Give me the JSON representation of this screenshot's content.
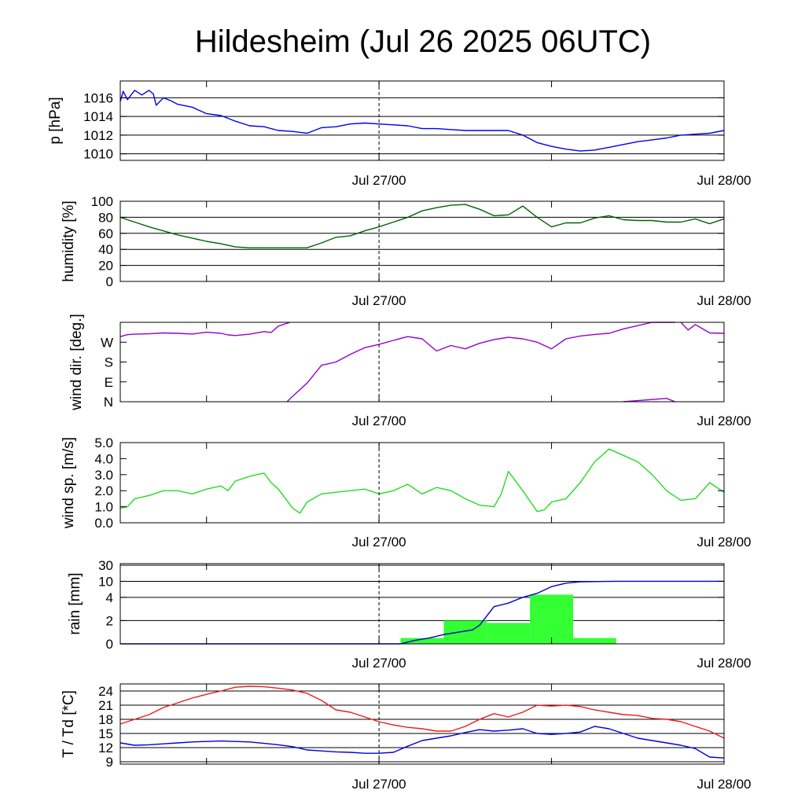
{
  "title": "Hildesheim (Jul 26 2025 06UTC)",
  "colors": {
    "pressure": "#0000ee",
    "humidity": "#006400",
    "wind_dir": "#9400d3",
    "wind_speed": "#22dd22",
    "rain_bar": "#33ff33",
    "rain_cum": "#0000cc",
    "temperature": "#ee1c1c",
    "dewpoint": "#0000dd"
  },
  "x_axis": {
    "unit": "hours since Jul 26 06UTC",
    "range": [
      0,
      42
    ],
    "tick_labels": [
      "Jul 27/00",
      "Jul 28/00"
    ]
  },
  "chart_data": [
    {
      "type": "line",
      "ylabel": "p [hPa]",
      "ylim": [
        1009.3,
        1017.8
      ],
      "yticks": [
        1010,
        1012,
        1014,
        1016
      ],
      "ytick_labels": [
        "1010",
        "1012",
        "1014",
        "1016"
      ],
      "grid": true,
      "series": [
        {
          "x": [
            0,
            0.2,
            0.5,
            1,
            1.5,
            2,
            2.3,
            2.5,
            3,
            3.5,
            4,
            5,
            6,
            7,
            8,
            9,
            10,
            11,
            12,
            13,
            14,
            15,
            16,
            17,
            18,
            19,
            20,
            21,
            22,
            23,
            24,
            25,
            26,
            27,
            28,
            29,
            30,
            31,
            32,
            33,
            34,
            35,
            36,
            37,
            38,
            39,
            40,
            41,
            42
          ],
          "y": [
            1015.6,
            1016.7,
            1015.8,
            1016.8,
            1016.3,
            1016.8,
            1016.4,
            1015.2,
            1016.0,
            1015.7,
            1015.3,
            1015.0,
            1014.3,
            1014.1,
            1013.5,
            1013.0,
            1012.9,
            1012.5,
            1012.4,
            1012.2,
            1012.8,
            1012.9,
            1013.2,
            1013.3,
            1013.2,
            1013.1,
            1013.0,
            1012.7,
            1012.7,
            1012.6,
            1012.5,
            1012.5,
            1012.5,
            1012.5,
            1012.0,
            1011.2,
            1010.8,
            1010.5,
            1010.3,
            1010.4,
            1010.7,
            1011.0,
            1011.3,
            1011.5,
            1011.7,
            1012.0,
            1012.1,
            1012.2,
            1012.5
          ]
        }
      ]
    },
    {
      "type": "line",
      "ylabel": "humidity [%]",
      "ylim": [
        0,
        100
      ],
      "yticks": [
        0,
        20,
        40,
        60,
        80,
        100
      ],
      "ytick_labels": [
        "0",
        "20",
        "40",
        "60",
        "80",
        "100"
      ],
      "grid": true,
      "series": [
        {
          "x": [
            0,
            1,
            2,
            3,
            4,
            5,
            6,
            7,
            8,
            9,
            10,
            11,
            12,
            13,
            14,
            15,
            16,
            17,
            18,
            19,
            20,
            21,
            22,
            23,
            24,
            25,
            26,
            27,
            28,
            29,
            30,
            31,
            32,
            33,
            34,
            35,
            36,
            37,
            38,
            39,
            40,
            41,
            42
          ],
          "y": [
            80,
            74,
            68,
            63,
            58,
            54,
            50,
            47,
            43,
            42,
            42,
            42,
            42,
            42,
            48,
            55,
            57,
            63,
            68,
            74,
            80,
            88,
            92,
            95,
            96,
            90,
            82,
            83,
            94,
            80,
            68,
            73,
            73,
            79,
            82,
            77,
            76,
            76,
            74,
            74,
            78,
            72,
            78
          ]
        }
      ]
    },
    {
      "type": "line",
      "ylabel": "wind dir. [deg.]",
      "ylim": [
        0,
        360
      ],
      "yticks": [
        0,
        90,
        180,
        270
      ],
      "ytick_labels": [
        "N",
        "E",
        "S",
        "W"
      ],
      "grid": false,
      "series": [
        {
          "x": [
            0,
            0.5,
            1,
            2,
            3,
            4,
            5,
            6,
            7,
            7.5,
            8,
            9,
            10,
            10.5,
            11,
            11.8
          ],
          "y": [
            295,
            304,
            306,
            308,
            312,
            310,
            307,
            315,
            310,
            303,
            300,
            306,
            318,
            314,
            343,
            360
          ]
        },
        {
          "x": [
            11.6,
            12,
            13,
            14,
            15,
            16,
            17,
            18,
            19,
            20,
            21,
            22,
            23,
            24,
            25,
            26,
            27,
            28,
            29,
            30,
            31,
            32,
            33,
            34,
            35
          ],
          "y": [
            0,
            25,
            85,
            165,
            180,
            215,
            245,
            260,
            278,
            295,
            285,
            230,
            255,
            240,
            265,
            282,
            292,
            285,
            270,
            240,
            285,
            298,
            305,
            310,
            330
          ]
        },
        {
          "x": [
            35,
            36,
            37,
            38,
            38.6
          ],
          "y": [
            330,
            345,
            360,
            360,
            360
          ]
        },
        {
          "x": [
            35,
            36,
            37,
            38,
            38.6
          ],
          "y": [
            0,
            5,
            10,
            15,
            0
          ]
        },
        {
          "x": [
            39,
            39.5,
            40,
            41,
            42
          ],
          "y": [
            360,
            325,
            350,
            312,
            310
          ]
        }
      ]
    },
    {
      "type": "line",
      "ylabel": "wind sp. [m/s]",
      "ylim": [
        0,
        5
      ],
      "yticks": [
        0,
        1,
        2,
        3,
        4,
        5
      ],
      "ytick_labels": [
        "0.0",
        "1.0",
        "2.0",
        "3.0",
        "4.0",
        "5.0"
      ],
      "grid": false,
      "series": [
        {
          "x": [
            0,
            0.5,
            1,
            2,
            3,
            4,
            5,
            6,
            7,
            7.5,
            8,
            9,
            10,
            10.5,
            11,
            12,
            12.5,
            13,
            14,
            15,
            16,
            17,
            18,
            19,
            20,
            21,
            22,
            23,
            24,
            25,
            26,
            26.5,
            27,
            28,
            29,
            29.5,
            30,
            31,
            32,
            33,
            34,
            35,
            36,
            37,
            38,
            39,
            40,
            41,
            42
          ],
          "y": [
            0.9,
            1.0,
            1.5,
            1.7,
            2.0,
            2.0,
            1.8,
            2.1,
            2.3,
            2.0,
            2.6,
            2.9,
            3.1,
            2.5,
            2.1,
            0.9,
            0.6,
            1.3,
            1.8,
            1.9,
            2.0,
            2.1,
            1.8,
            2.0,
            2.4,
            1.8,
            2.2,
            2.0,
            1.5,
            1.1,
            1.0,
            1.8,
            3.2,
            2.0,
            0.7,
            0.8,
            1.3,
            1.5,
            2.5,
            3.8,
            4.6,
            4.2,
            3.8,
            3.0,
            2.0,
            1.4,
            1.5,
            2.5,
            1.9
          ]
        }
      ]
    },
    {
      "type": "bar+line",
      "ylabel": "rain [mm]",
      "ylim": [
        0,
        30
      ],
      "scale": "nonlinear",
      "yticks": [
        0,
        2,
        4,
        10,
        30
      ],
      "ytick_labels": [
        "0",
        "2",
        "4",
        "10",
        "30"
      ],
      "grid": true,
      "bars": [
        {
          "x0": 19.5,
          "x1": 22.5,
          "value": 0.5
        },
        {
          "x0": 22.5,
          "x1": 25.5,
          "value": 2.0
        },
        {
          "x0": 25.5,
          "x1": 28.5,
          "value": 1.8
        },
        {
          "x0": 28.5,
          "x1": 31.5,
          "value": 5.0
        },
        {
          "x0": 31.5,
          "x1": 34.5,
          "value": 0.5
        }
      ],
      "series": [
        {
          "x": [
            0,
            19.5,
            20.5,
            21.5,
            22.5,
            23.5,
            24.5,
            25,
            26,
            27,
            28,
            29,
            30,
            31,
            32,
            34.5,
            36,
            42
          ],
          "y": [
            0,
            0,
            0.3,
            0.5,
            0.8,
            1.0,
            1.2,
            1.6,
            3.2,
            3.5,
            4.0,
            5.5,
            8.0,
            9.3,
            9.8,
            10.0,
            10.0,
            10.0
          ]
        }
      ]
    },
    {
      "type": "line",
      "ylabel": "T / Td [*C]",
      "ylim": [
        8.5,
        25.5
      ],
      "yticks": [
        9,
        12,
        15,
        18,
        21,
        24
      ],
      "ytick_labels": [
        "9",
        "12",
        "15",
        "18",
        "21",
        "24"
      ],
      "grid": true,
      "series": [
        {
          "x": [
            0,
            1,
            2,
            3,
            4,
            5,
            6,
            7,
            8,
            9,
            10,
            11,
            12,
            13,
            14,
            15,
            16,
            17,
            18,
            19,
            20,
            21,
            22,
            23,
            24,
            25,
            26,
            27,
            28,
            29,
            30,
            31,
            32,
            33,
            34,
            35,
            36,
            37,
            38,
            39,
            40,
            41,
            42
          ],
          "y": [
            17,
            18,
            19,
            20.5,
            21.5,
            22.5,
            23.3,
            24,
            24.8,
            25,
            24.9,
            24.6,
            24.2,
            23.5,
            22,
            20,
            19.5,
            18.5,
            17.5,
            16.8,
            16.3,
            16,
            15.5,
            15.5,
            16.5,
            18,
            19.2,
            18.5,
            19.5,
            21,
            20.8,
            21,
            20.7,
            20,
            19.5,
            19,
            18.8,
            18.2,
            18,
            17.5,
            16.5,
            15.5,
            14
          ]
        },
        {
          "x": [
            0,
            1,
            2,
            3,
            4,
            5,
            6,
            7,
            8,
            9,
            10,
            11,
            12,
            13,
            14,
            15,
            16,
            17,
            18,
            19,
            20,
            21,
            22,
            23,
            24,
            25,
            26,
            27,
            28,
            29,
            30,
            31,
            32,
            33,
            34,
            35,
            36,
            37,
            38,
            39,
            40,
            41,
            42
          ],
          "y": [
            13,
            12.5,
            12.6,
            12.8,
            13,
            13.2,
            13.3,
            13.4,
            13.3,
            13.2,
            12.9,
            12.6,
            12.2,
            11.5,
            11.3,
            11.1,
            11,
            10.8,
            10.8,
            11,
            12.3,
            13.5,
            14,
            14.5,
            15.2,
            15.8,
            15.5,
            15.7,
            16,
            15,
            14.8,
            15,
            15.3,
            16.5,
            16,
            15,
            14,
            13.5,
            13,
            12.5,
            11.8,
            10,
            9.8
          ]
        }
      ]
    }
  ]
}
